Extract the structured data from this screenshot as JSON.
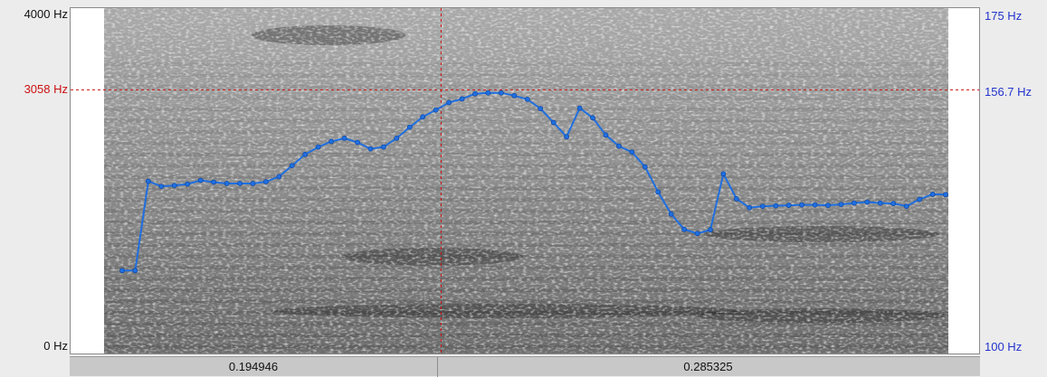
{
  "spectrogram": {
    "freq_axis": {
      "top_label": "4000 Hz",
      "bottom_label": "0 Hz",
      "max_hz": 4000,
      "min_hz": 0
    },
    "pitch_axis": {
      "top_label": "175 Hz",
      "bottom_label": "100 Hz",
      "max_hz": 175,
      "min_hz": 100
    },
    "cursor": {
      "freq_label": "3058 Hz",
      "pitch_label": "156.7 Hz",
      "time_fraction": 0.407,
      "freq_hz": 3058
    },
    "time_segments": {
      "before_cursor": "0.194946",
      "after_cursor": "0.285325"
    }
  },
  "colors": {
    "pitch_line": "#1f6fe0",
    "cursor": "#cc1111",
    "pitch_axis_text": "#2233cc",
    "background": "#ececec"
  },
  "pitch_contour_hz": [
    118.3,
    118.3,
    137.6,
    136.5,
    136.7,
    137.0,
    137.8,
    137.4,
    137.1,
    137.1,
    137.1,
    137.5,
    138.6,
    141.0,
    143.4,
    145.0,
    146.2,
    146.9,
    146.0,
    144.6,
    145.0,
    146.9,
    149.3,
    151.5,
    153.0,
    154.6,
    155.4,
    156.5,
    156.7,
    156.7,
    156.1,
    155.3,
    153.3,
    150.3,
    147.2,
    153.4,
    151.3,
    147.6,
    145.2,
    143.9,
    140.7,
    135.3,
    130.5,
    127.2,
    126.3,
    127.1,
    139.2,
    133.8,
    131.9,
    132.2,
    132.3,
    132.4,
    132.5,
    132.5,
    132.4,
    132.6,
    132.9,
    133.1,
    132.9,
    132.8,
    132.2,
    133.7,
    134.8,
    134.7
  ]
}
